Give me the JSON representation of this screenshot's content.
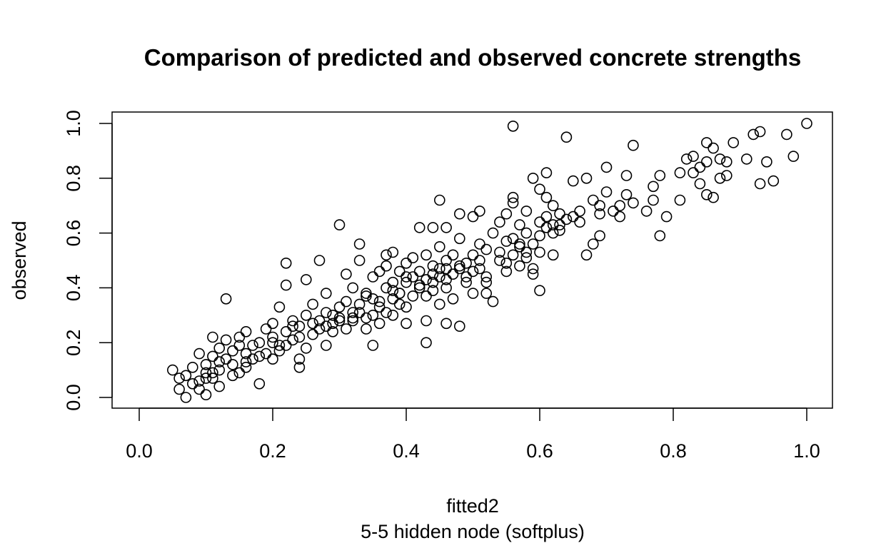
{
  "chart_data": {
    "type": "scatter",
    "title": "Comparison of predicted and observed concrete strengths",
    "xlabel": "fitted2",
    "subtitle": "5-5 hidden node (softplus)",
    "ylabel": "observed",
    "xlim": [
      0.0,
      1.0
    ],
    "ylim": [
      0.0,
      1.0
    ],
    "x_ticks": [
      "0.0",
      "0.2",
      "0.4",
      "0.6",
      "0.8",
      "1.0"
    ],
    "y_ticks": [
      "0.0",
      "0.2",
      "0.4",
      "0.6",
      "0.8",
      "1.0"
    ],
    "grid": false,
    "legend": "none",
    "marker": "open-circle",
    "points": [
      [
        0.05,
        0.1
      ],
      [
        0.06,
        0.03
      ],
      [
        0.06,
        0.07
      ],
      [
        0.07,
        0.0
      ],
      [
        0.07,
        0.08
      ],
      [
        0.08,
        0.05
      ],
      [
        0.08,
        0.11
      ],
      [
        0.09,
        0.03
      ],
      [
        0.09,
        0.16
      ],
      [
        0.09,
        0.06
      ],
      [
        0.1,
        0.09
      ],
      [
        0.1,
        0.01
      ],
      [
        0.1,
        0.12
      ],
      [
        0.11,
        0.15
      ],
      [
        0.11,
        0.22
      ],
      [
        0.11,
        0.07
      ],
      [
        0.12,
        0.1
      ],
      [
        0.12,
        0.18
      ],
      [
        0.12,
        0.04
      ],
      [
        0.13,
        0.14
      ],
      [
        0.13,
        0.36
      ],
      [
        0.13,
        0.21
      ],
      [
        0.14,
        0.08
      ],
      [
        0.14,
        0.12
      ],
      [
        0.15,
        0.19
      ],
      [
        0.15,
        0.22
      ],
      [
        0.16,
        0.11
      ],
      [
        0.16,
        0.16
      ],
      [
        0.16,
        0.24
      ],
      [
        0.17,
        0.14
      ],
      [
        0.18,
        0.05
      ],
      [
        0.18,
        0.2
      ],
      [
        0.19,
        0.25
      ],
      [
        0.19,
        0.16
      ],
      [
        0.2,
        0.22
      ],
      [
        0.2,
        0.27
      ],
      [
        0.2,
        0.14
      ],
      [
        0.21,
        0.19
      ],
      [
        0.21,
        0.33
      ],
      [
        0.22,
        0.41
      ],
      [
        0.22,
        0.49
      ],
      [
        0.22,
        0.24
      ],
      [
        0.23,
        0.21
      ],
      [
        0.23,
        0.28
      ],
      [
        0.24,
        0.26
      ],
      [
        0.24,
        0.14
      ],
      [
        0.24,
        0.11
      ],
      [
        0.25,
        0.3
      ],
      [
        0.25,
        0.43
      ],
      [
        0.25,
        0.18
      ],
      [
        0.26,
        0.34
      ],
      [
        0.26,
        0.23
      ],
      [
        0.27,
        0.28
      ],
      [
        0.27,
        0.5
      ],
      [
        0.28,
        0.31
      ],
      [
        0.28,
        0.19
      ],
      [
        0.28,
        0.38
      ],
      [
        0.29,
        0.27
      ],
      [
        0.29,
        0.24
      ],
      [
        0.3,
        0.33
      ],
      [
        0.3,
        0.29
      ],
      [
        0.3,
        0.63
      ],
      [
        0.31,
        0.45
      ],
      [
        0.31,
        0.35
      ],
      [
        0.31,
        0.25
      ],
      [
        0.32,
        0.31
      ],
      [
        0.32,
        0.4
      ],
      [
        0.32,
        0.28
      ],
      [
        0.33,
        0.34
      ],
      [
        0.33,
        0.5
      ],
      [
        0.33,
        0.56
      ],
      [
        0.34,
        0.29
      ],
      [
        0.34,
        0.38
      ],
      [
        0.35,
        0.44
      ],
      [
        0.35,
        0.3
      ],
      [
        0.35,
        0.36
      ],
      [
        0.35,
        0.19
      ],
      [
        0.36,
        0.33
      ],
      [
        0.36,
        0.46
      ],
      [
        0.36,
        0.27
      ],
      [
        0.37,
        0.4
      ],
      [
        0.37,
        0.48
      ],
      [
        0.37,
        0.52
      ],
      [
        0.38,
        0.36
      ],
      [
        0.38,
        0.42
      ],
      [
        0.38,
        0.3
      ],
      [
        0.38,
        0.53
      ],
      [
        0.39,
        0.38
      ],
      [
        0.39,
        0.46
      ],
      [
        0.39,
        0.34
      ],
      [
        0.4,
        0.42
      ],
      [
        0.4,
        0.49
      ],
      [
        0.4,
        0.27
      ],
      [
        0.41,
        0.44
      ],
      [
        0.41,
        0.37
      ],
      [
        0.41,
        0.51
      ],
      [
        0.42,
        0.4
      ],
      [
        0.42,
        0.46
      ],
      [
        0.42,
        0.62
      ],
      [
        0.43,
        0.43
      ],
      [
        0.43,
        0.28
      ],
      [
        0.43,
        0.2
      ],
      [
        0.43,
        0.52
      ],
      [
        0.44,
        0.45
      ],
      [
        0.44,
        0.39
      ],
      [
        0.44,
        0.48
      ],
      [
        0.44,
        0.62
      ],
      [
        0.45,
        0.47
      ],
      [
        0.45,
        0.34
      ],
      [
        0.45,
        0.55
      ],
      [
        0.45,
        0.72
      ],
      [
        0.46,
        0.43
      ],
      [
        0.46,
        0.5
      ],
      [
        0.46,
        0.27
      ],
      [
        0.46,
        0.62
      ],
      [
        0.47,
        0.45
      ],
      [
        0.47,
        0.52
      ],
      [
        0.47,
        0.36
      ],
      [
        0.48,
        0.48
      ],
      [
        0.48,
        0.58
      ],
      [
        0.48,
        0.26
      ],
      [
        0.48,
        0.67
      ],
      [
        0.49,
        0.49
      ],
      [
        0.49,
        0.42
      ],
      [
        0.5,
        0.52
      ],
      [
        0.5,
        0.38
      ],
      [
        0.5,
        0.66
      ],
      [
        0.51,
        0.47
      ],
      [
        0.51,
        0.56
      ],
      [
        0.51,
        0.68
      ],
      [
        0.52,
        0.44
      ],
      [
        0.52,
        0.54
      ],
      [
        0.52,
        0.38
      ],
      [
        0.53,
        0.6
      ],
      [
        0.53,
        0.35
      ],
      [
        0.54,
        0.5
      ],
      [
        0.54,
        0.64
      ],
      [
        0.55,
        0.46
      ],
      [
        0.55,
        0.57
      ],
      [
        0.55,
        0.67
      ],
      [
        0.56,
        0.52
      ],
      [
        0.56,
        0.71
      ],
      [
        0.56,
        0.73
      ],
      [
        0.56,
        0.99
      ],
      [
        0.57,
        0.48
      ],
      [
        0.57,
        0.55
      ],
      [
        0.57,
        0.63
      ],
      [
        0.58,
        0.6
      ],
      [
        0.58,
        0.68
      ],
      [
        0.58,
        0.53
      ],
      [
        0.59,
        0.47
      ],
      [
        0.59,
        0.56
      ],
      [
        0.59,
        0.45
      ],
      [
        0.59,
        0.8
      ],
      [
        0.6,
        0.64
      ],
      [
        0.6,
        0.76
      ],
      [
        0.6,
        0.39
      ],
      [
        0.6,
        0.53
      ],
      [
        0.61,
        0.66
      ],
      [
        0.61,
        0.82
      ],
      [
        0.61,
        0.73
      ],
      [
        0.62,
        0.6
      ],
      [
        0.62,
        0.52
      ],
      [
        0.62,
        0.7
      ],
      [
        0.63,
        0.63
      ],
      [
        0.63,
        0.67
      ],
      [
        0.64,
        0.65
      ],
      [
        0.64,
        0.95
      ],
      [
        0.65,
        0.66
      ],
      [
        0.65,
        0.79
      ],
      [
        0.66,
        0.68
      ],
      [
        0.67,
        0.52
      ],
      [
        0.67,
        0.8
      ],
      [
        0.68,
        0.56
      ],
      [
        0.68,
        0.72
      ],
      [
        0.69,
        0.59
      ],
      [
        0.69,
        0.7
      ],
      [
        0.7,
        0.75
      ],
      [
        0.7,
        0.84
      ],
      [
        0.71,
        0.68
      ],
      [
        0.72,
        0.66
      ],
      [
        0.72,
        0.7
      ],
      [
        0.73,
        0.81
      ],
      [
        0.73,
        0.74
      ],
      [
        0.74,
        0.71
      ],
      [
        0.74,
        0.92
      ],
      [
        0.76,
        0.68
      ],
      [
        0.77,
        0.77
      ],
      [
        0.77,
        0.72
      ],
      [
        0.78,
        0.59
      ],
      [
        0.78,
        0.81
      ],
      [
        0.79,
        0.66
      ],
      [
        0.81,
        0.72
      ],
      [
        0.81,
        0.82
      ],
      [
        0.82,
        0.87
      ],
      [
        0.83,
        0.88
      ],
      [
        0.83,
        0.82
      ],
      [
        0.84,
        0.84
      ],
      [
        0.84,
        0.78
      ],
      [
        0.85,
        0.86
      ],
      [
        0.85,
        0.93
      ],
      [
        0.85,
        0.74
      ],
      [
        0.86,
        0.91
      ],
      [
        0.86,
        0.73
      ],
      [
        0.87,
        0.8
      ],
      [
        0.87,
        0.87
      ],
      [
        0.88,
        0.81
      ],
      [
        0.88,
        0.86
      ],
      [
        0.89,
        0.93
      ],
      [
        0.91,
        0.87
      ],
      [
        0.92,
        0.96
      ],
      [
        0.93,
        0.97
      ],
      [
        0.93,
        0.78
      ],
      [
        0.94,
        0.86
      ],
      [
        0.95,
        0.79
      ],
      [
        0.97,
        0.96
      ],
      [
        0.98,
        0.88
      ],
      [
        1.0,
        1.0
      ],
      [
        0.15,
        0.09
      ],
      [
        0.21,
        0.17
      ],
      [
        0.27,
        0.25
      ],
      [
        0.33,
        0.31
      ],
      [
        0.39,
        0.38
      ],
      [
        0.45,
        0.44
      ],
      [
        0.51,
        0.5
      ],
      [
        0.57,
        0.56
      ],
      [
        0.63,
        0.61
      ],
      [
        0.69,
        0.67
      ],
      [
        0.12,
        0.13
      ],
      [
        0.18,
        0.15
      ],
      [
        0.24,
        0.22
      ],
      [
        0.3,
        0.28
      ],
      [
        0.36,
        0.35
      ],
      [
        0.42,
        0.41
      ],
      [
        0.48,
        0.47
      ],
      [
        0.54,
        0.53
      ],
      [
        0.6,
        0.59
      ],
      [
        0.66,
        0.64
      ],
      [
        0.14,
        0.17
      ],
      [
        0.2,
        0.2
      ],
      [
        0.26,
        0.27
      ],
      [
        0.32,
        0.29
      ],
      [
        0.38,
        0.39
      ],
      [
        0.44,
        0.42
      ],
      [
        0.5,
        0.46
      ],
      [
        0.56,
        0.58
      ],
      [
        0.62,
        0.63
      ],
      [
        0.34,
        0.25
      ],
      [
        0.4,
        0.33
      ],
      [
        0.46,
        0.4
      ],
      [
        0.52,
        0.42
      ],
      [
        0.58,
        0.51
      ],
      [
        0.29,
        0.3
      ],
      [
        0.23,
        0.26
      ],
      [
        0.17,
        0.19
      ],
      [
        0.11,
        0.09
      ],
      [
        0.37,
        0.31
      ],
      [
        0.43,
        0.37
      ],
      [
        0.49,
        0.44
      ],
      [
        0.55,
        0.49
      ],
      [
        0.61,
        0.62
      ],
      [
        0.28,
        0.26
      ],
      [
        0.22,
        0.19
      ],
      [
        0.16,
        0.13
      ],
      [
        0.1,
        0.07
      ],
      [
        0.34,
        0.37
      ],
      [
        0.4,
        0.44
      ],
      [
        0.46,
        0.47
      ]
    ]
  }
}
